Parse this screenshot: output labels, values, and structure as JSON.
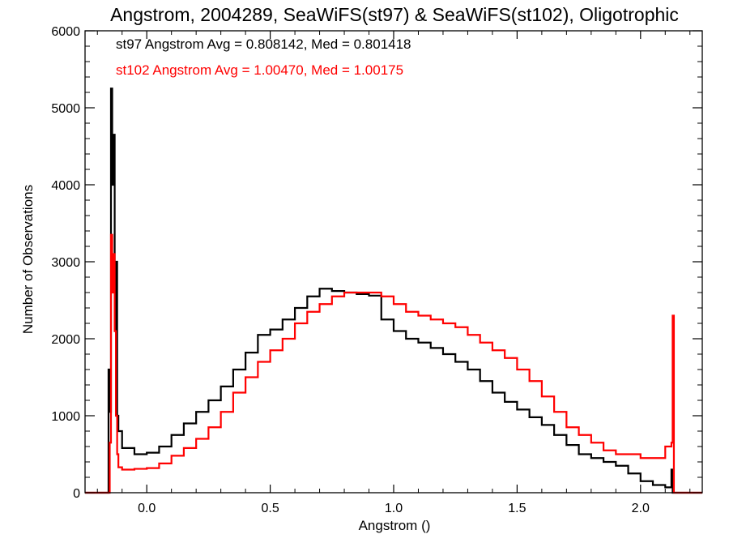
{
  "chart_data": {
    "type": "line",
    "title": "Angstrom, 2004289, SeaWiFS(st97) & SeaWiFS(st102), Oligotrophic",
    "xlabel": "Angstrom ()",
    "ylabel": "Number of Observations",
    "xlim": [
      -0.25,
      2.25
    ],
    "ylim": [
      0,
      6000
    ],
    "xticks": [
      0.0,
      0.5,
      1.0,
      1.5,
      2.0
    ],
    "xtick_labels": [
      "0.0",
      "0.5",
      "1.0",
      "1.5",
      "2.0"
    ],
    "yticks": [
      0,
      1000,
      2000,
      3000,
      4000,
      5000,
      6000
    ],
    "ytick_labels": [
      "0",
      "1000",
      "2000",
      "3000",
      "4000",
      "5000",
      "6000"
    ],
    "grid": false,
    "step": true,
    "annotations": [
      {
        "text": "st97 Angstrom Avg = 0.808142, Med = 0.801418",
        "color": "#000000"
      },
      {
        "text": "st102 Angstrom Avg = 1.00470, Med = 1.00175",
        "color": "#ff0000"
      }
    ],
    "series": [
      {
        "color": "#000000",
        "x": [
          -0.25,
          -0.16,
          -0.155,
          -0.15,
          -0.145,
          -0.14,
          -0.135,
          -0.13,
          -0.125,
          -0.12,
          -0.115,
          -0.1,
          -0.05,
          0.0,
          0.05,
          0.1,
          0.15,
          0.2,
          0.25,
          0.3,
          0.35,
          0.4,
          0.45,
          0.5,
          0.55,
          0.6,
          0.65,
          0.7,
          0.75,
          0.8,
          0.85,
          0.9,
          0.95,
          1.0,
          1.05,
          1.1,
          1.15,
          1.2,
          1.25,
          1.3,
          1.35,
          1.4,
          1.45,
          1.5,
          1.55,
          1.6,
          1.65,
          1.7,
          1.75,
          1.8,
          1.85,
          1.9,
          1.95,
          2.0,
          2.05,
          2.1,
          2.125,
          2.13,
          2.14,
          2.25
        ],
        "y": [
          0,
          0,
          1600,
          1050,
          5250,
          4000,
          4650,
          2100,
          3000,
          1000,
          800,
          580,
          500,
          520,
          600,
          750,
          900,
          1050,
          1200,
          1380,
          1600,
          1820,
          2050,
          2120,
          2250,
          2400,
          2550,
          2650,
          2620,
          2600,
          2580,
          2560,
          2250,
          2100,
          2000,
          1950,
          1880,
          1800,
          1700,
          1600,
          1450,
          1300,
          1180,
          1080,
          980,
          880,
          750,
          620,
          500,
          450,
          400,
          350,
          250,
          150,
          100,
          70,
          300,
          0,
          0,
          0
        ]
      },
      {
        "color": "#ff0000",
        "x": [
          -0.25,
          -0.16,
          -0.155,
          -0.15,
          -0.145,
          -0.14,
          -0.135,
          -0.13,
          -0.125,
          -0.12,
          -0.115,
          -0.1,
          -0.05,
          0.0,
          0.05,
          0.1,
          0.15,
          0.2,
          0.25,
          0.3,
          0.35,
          0.4,
          0.45,
          0.5,
          0.55,
          0.6,
          0.65,
          0.7,
          0.75,
          0.8,
          0.85,
          0.9,
          0.95,
          1.0,
          1.05,
          1.1,
          1.15,
          1.2,
          1.25,
          1.3,
          1.35,
          1.4,
          1.45,
          1.5,
          1.55,
          1.6,
          1.65,
          1.7,
          1.75,
          1.8,
          1.85,
          1.9,
          1.95,
          2.0,
          2.05,
          2.1,
          2.125,
          2.13,
          2.135,
          2.14,
          2.25
        ],
        "y": [
          0,
          0,
          0,
          650,
          3350,
          2600,
          3100,
          2100,
          1000,
          500,
          330,
          300,
          310,
          320,
          380,
          480,
          580,
          700,
          850,
          1050,
          1300,
          1500,
          1700,
          1850,
          2000,
          2200,
          2350,
          2450,
          2550,
          2600,
          2600,
          2600,
          2550,
          2450,
          2350,
          2300,
          2250,
          2200,
          2150,
          2050,
          1950,
          1850,
          1750,
          1600,
          1450,
          1250,
          1050,
          850,
          750,
          650,
          550,
          500,
          500,
          450,
          450,
          600,
          650,
          2300,
          0,
          0,
          0
        ]
      }
    ]
  }
}
